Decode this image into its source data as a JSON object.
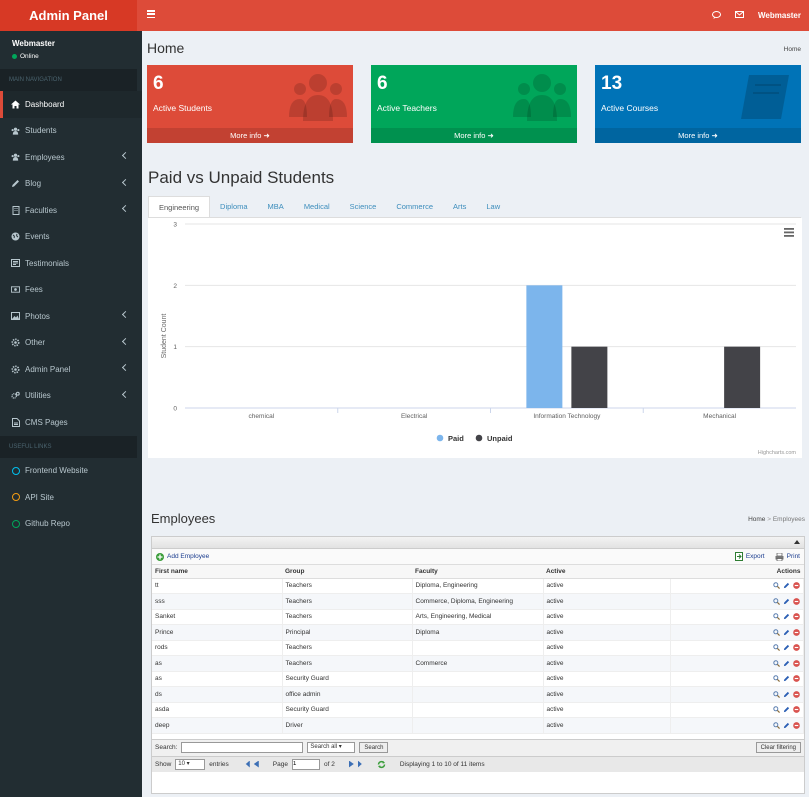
{
  "topbar": {
    "logo": "Admin Panel",
    "user": "Webmaster"
  },
  "sidebar": {
    "user_name": "Webmaster",
    "user_status": "Online",
    "main_header": "MAIN NAVIGATION",
    "items": [
      {
        "label": "Dashboard",
        "icon": "home-icon",
        "active": true,
        "submenu": false
      },
      {
        "label": "Students",
        "icon": "users-icon",
        "submenu": false
      },
      {
        "label": "Employees",
        "icon": "users-icon",
        "submenu": true
      },
      {
        "label": "Blog",
        "icon": "pencil-icon",
        "submenu": true
      },
      {
        "label": "Faculties",
        "icon": "building-icon",
        "submenu": true
      },
      {
        "label": "Events",
        "icon": "globe-icon",
        "submenu": false
      },
      {
        "label": "Testimonials",
        "icon": "newspaper-icon",
        "submenu": false
      },
      {
        "label": "Fees",
        "icon": "money-icon",
        "submenu": false
      },
      {
        "label": "Photos",
        "icon": "image-icon",
        "submenu": true
      },
      {
        "label": "Other",
        "icon": "gear-icon",
        "submenu": true
      },
      {
        "label": "Admin Panel",
        "icon": "gear-icon",
        "submenu": true
      },
      {
        "label": "Utilities",
        "icon": "cogs-icon",
        "submenu": true
      },
      {
        "label": "CMS Pages",
        "icon": "file-icon",
        "submenu": false
      }
    ],
    "links_header": "USEFUL LINKS",
    "links": [
      {
        "label": "Frontend Website",
        "color": "#00c0ef"
      },
      {
        "label": "API Site",
        "color": "#f39c12"
      },
      {
        "label": "Github Repo",
        "color": "#00a65a"
      }
    ]
  },
  "home": {
    "title": "Home",
    "breadcrumb": "Home"
  },
  "boxes": [
    {
      "count": "6",
      "label": "Active Students",
      "more": "More info",
      "color": "#dd4b39"
    },
    {
      "count": "6",
      "label": "Active Teachers",
      "more": "More info",
      "color": "#00a65a"
    },
    {
      "count": "13",
      "label": "Active Courses",
      "more": "More info",
      "color": "#0073b7"
    }
  ],
  "chart_section": {
    "title": "Paid vs Unpaid Students",
    "tabs": [
      "Engineering",
      "Diploma",
      "MBA",
      "Medical",
      "Science",
      "Commerce",
      "Arts",
      "Law"
    ],
    "active_tab": "Engineering",
    "credit": "Highcharts.com"
  },
  "chart_data": {
    "type": "bar",
    "categories": [
      "chemical",
      "Electrical",
      "Information Technology",
      "Mechanical"
    ],
    "series": [
      {
        "name": "Paid",
        "values": [
          0,
          0,
          2,
          0
        ],
        "color": "#7cb5ec"
      },
      {
        "name": "Unpaid",
        "values": [
          0,
          0,
          1,
          1
        ],
        "color": "#434348"
      }
    ],
    "ylabel": "Student Count",
    "ylim": [
      0,
      3
    ],
    "yticks": [
      "0",
      "1",
      "2",
      "3"
    ],
    "grid": true,
    "legend": "bottom-center"
  },
  "employees": {
    "title": "Employees",
    "breadcrumb_home": "Home",
    "breadcrumb_sep": ">",
    "breadcrumb_current": "Employees",
    "add": "Add Employee",
    "export": "Export",
    "print": "Print",
    "columns": [
      "First name",
      "Group",
      "Faculty",
      "Active",
      "Actions"
    ],
    "rows": [
      [
        "tt",
        "Teachers",
        "Diploma, Engineering",
        "active"
      ],
      [
        "sss",
        "Teachers",
        "Commerce, Diploma, Engineering",
        "active"
      ],
      [
        "Sanket",
        "Teachers",
        "Arts, Engineering, Medical",
        "active"
      ],
      [
        "Prince",
        "Principal",
        "Diploma",
        "active"
      ],
      [
        "rods",
        "Teachers",
        "",
        "active"
      ],
      [
        "as",
        "Teachers",
        "Commerce",
        "active"
      ],
      [
        "as",
        "Security Guard",
        "",
        "active"
      ],
      [
        "ds",
        "office admin",
        "",
        "active"
      ],
      [
        "asda",
        "Security Guard",
        "",
        "active"
      ],
      [
        "deep",
        "Driver",
        "",
        "active"
      ]
    ],
    "search_label": "Search:",
    "search_option": "Search all",
    "search_button": "Search",
    "clear_button": "Clear filtering",
    "show_label": "Show",
    "show_value": "10",
    "entries_label": "entries",
    "page_label": "Page",
    "page_value": "1",
    "of_label": "of 2",
    "displaying": "Displaying 1 to 10 of 11 items"
  }
}
